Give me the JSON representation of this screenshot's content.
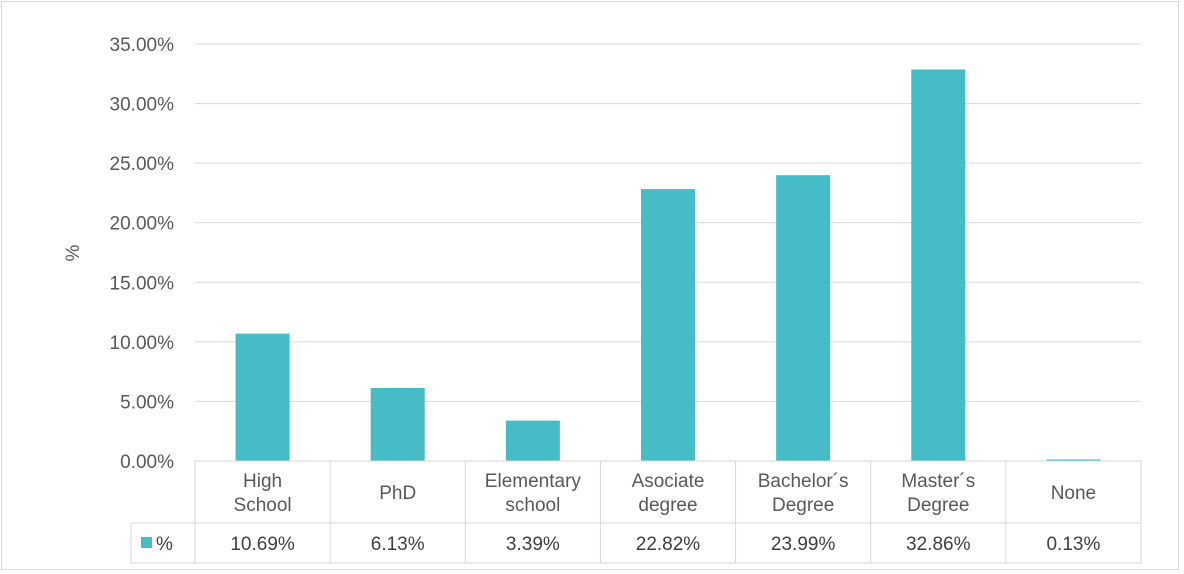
{
  "chart_data": {
    "type": "bar",
    "categories": [
      [
        "High",
        "School"
      ],
      [
        "PhD"
      ],
      [
        "Elementary",
        "school"
      ],
      [
        "Asociate",
        "degree"
      ],
      [
        "Bachelor´s",
        "Degree"
      ],
      [
        "Master´s",
        "Degree"
      ],
      [
        "None"
      ]
    ],
    "series": [
      {
        "name": "%",
        "color": "#45bcc6",
        "values": [
          10.69,
          6.13,
          3.39,
          22.82,
          23.99,
          32.86,
          0.13
        ],
        "table_labels": [
          "10.69%",
          "6.13%",
          "3.39%",
          "22.82%",
          "23.99%",
          "32.86%",
          "0.13%"
        ]
      }
    ],
    "ylabel": "%",
    "ylim": [
      0,
      35
    ],
    "yticks": [
      0,
      5,
      10,
      15,
      20,
      25,
      30,
      35
    ],
    "ytick_labels": [
      "0.00%",
      "5.00%",
      "10.00%",
      "15.00%",
      "20.00%",
      "25.00%",
      "30.00%",
      "35.00%"
    ],
    "grid": true,
    "data_table": true,
    "legend_in_table": true
  }
}
